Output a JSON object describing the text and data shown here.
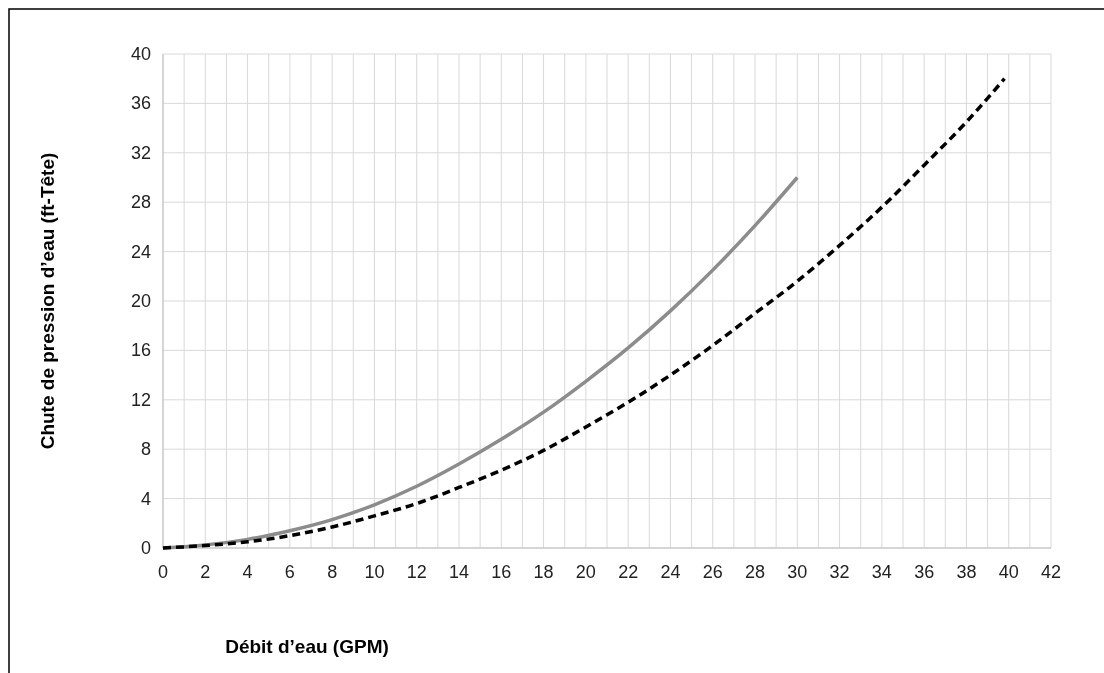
{
  "chart_data": {
    "type": "line",
    "xlabel": "Débit d’eau (GPM)",
    "ylabel": "Chute de pression d’eau (ft-Tête)",
    "xlim": [
      0,
      42
    ],
    "ylim": [
      0,
      40
    ],
    "xticks": [
      0,
      {
        "value": 1,
        "label": null
      },
      2,
      {
        "value": 3,
        "label": null
      },
      4,
      {
        "value": 5,
        "label": null
      },
      6,
      {
        "value": 7,
        "label": null
      },
      8,
      {
        "value": 9,
        "label": null
      },
      10,
      {
        "value": 11,
        "label": null
      },
      12,
      {
        "value": 13,
        "label": null
      },
      14,
      {
        "value": 15,
        "label": null
      },
      16,
      {
        "value": 17,
        "label": null
      },
      18,
      {
        "value": 19,
        "label": null
      },
      20,
      {
        "value": 21,
        "label": null
      },
      22,
      {
        "value": 23,
        "label": null
      },
      24,
      {
        "value": 25,
        "label": null
      },
      26,
      {
        "value": 27,
        "label": null
      },
      28,
      {
        "value": 29,
        "label": null
      },
      30,
      {
        "value": 31,
        "label": null
      },
      32,
      {
        "value": 33,
        "label": null
      },
      34,
      {
        "value": 35,
        "label": null
      },
      36,
      {
        "value": 37,
        "label": null
      },
      38,
      {
        "value": 39,
        "label": null
      },
      40,
      {
        "value": 41,
        "label": null
      },
      42
    ],
    "yticks": [
      0,
      4,
      8,
      12,
      16,
      20,
      24,
      28,
      32,
      36,
      40
    ],
    "grid": true,
    "series": [
      {
        "color": "#8c8c8c",
        "line_style": "solid",
        "x": [
          0,
          2,
          4,
          6,
          8,
          10,
          12,
          14,
          16,
          18,
          20,
          22,
          24,
          26,
          28,
          30
        ],
        "values": [
          0,
          0.25,
          0.7,
          1.4,
          2.3,
          3.5,
          5,
          6.8,
          8.8,
          11,
          13.5,
          16.2,
          19.2,
          22.5,
          26.1,
          30
        ]
      },
      {
        "color": "#000000",
        "line_style": "dashed",
        "x": [
          0,
          2,
          4,
          6,
          8,
          10,
          12,
          14,
          16,
          18,
          20,
          22,
          24,
          26,
          28,
          30,
          32,
          34,
          36,
          38,
          39.8
        ],
        "values": [
          0,
          0.2,
          0.5,
          1,
          1.7,
          2.6,
          3.6,
          4.9,
          6.3,
          7.9,
          9.8,
          11.8,
          14,
          16.4,
          19,
          21.6,
          24.5,
          27.6,
          31,
          34.5,
          38
        ]
      }
    ]
  }
}
